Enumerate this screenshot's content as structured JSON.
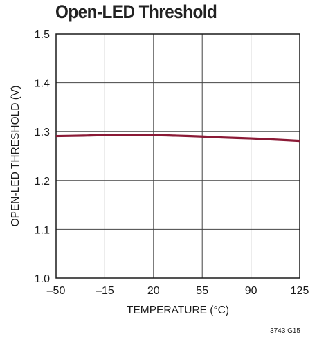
{
  "figure_code": "3743 G15",
  "chart_data": {
    "type": "line",
    "title": "Open-LED Threshold",
    "xlabel": "TEMPERATURE (°C)",
    "ylabel": "OPEN-LED THRESHOLD (V)",
    "xlim": [
      -50,
      125
    ],
    "ylim": [
      1.0,
      1.5
    ],
    "x_ticks": [
      -50,
      -15,
      20,
      55,
      90,
      125
    ],
    "x_tick_labels": [
      "–50",
      "–15",
      "20",
      "55",
      "90",
      "125"
    ],
    "y_ticks": [
      1.0,
      1.1,
      1.2,
      1.3,
      1.4,
      1.5
    ],
    "y_tick_labels": [
      "1.0",
      "1.1",
      "1.2",
      "1.3",
      "1.4",
      "1.5"
    ],
    "grid": true,
    "series": [
      {
        "color": "#8b1a36",
        "x": [
          -50,
          -30,
          -15,
          0,
          20,
          35,
          55,
          70,
          90,
          105,
          125
        ],
        "y": [
          1.291,
          1.292,
          1.293,
          1.293,
          1.293,
          1.292,
          1.29,
          1.288,
          1.286,
          1.284,
          1.281
        ]
      }
    ]
  }
}
